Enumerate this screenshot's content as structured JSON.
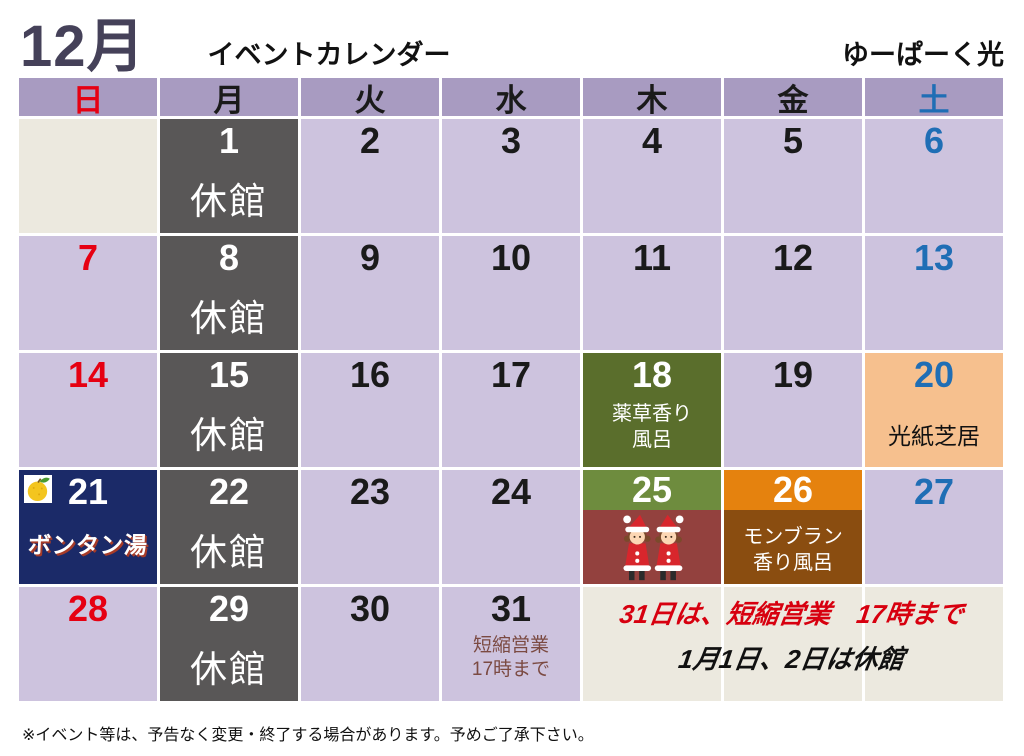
{
  "header": {
    "month": "12月",
    "title": "イベントカレンダー",
    "facility": "ゆーぱーく光"
  },
  "weekdays": [
    {
      "id": "sun",
      "label": "日",
      "color": "red"
    },
    {
      "id": "mon",
      "label": "月",
      "color": "black"
    },
    {
      "id": "tue",
      "label": "火",
      "color": "black"
    },
    {
      "id": "wed",
      "label": "水",
      "color": "black"
    },
    {
      "id": "thu",
      "label": "木",
      "color": "black"
    },
    {
      "id": "fri",
      "label": "金",
      "color": "black"
    },
    {
      "id": "sat",
      "label": "土",
      "color": "blue"
    }
  ],
  "calendar": {
    "cells": [
      {
        "bg": "cream"
      },
      {
        "day": "1",
        "day_color": "white",
        "bg": "gray",
        "label": "休館",
        "label_class": "closed"
      },
      {
        "day": "2",
        "day_color": "black",
        "bg": "lavender"
      },
      {
        "day": "3",
        "day_color": "black",
        "bg": "lavender"
      },
      {
        "day": "4",
        "day_color": "black",
        "bg": "lavender"
      },
      {
        "day": "5",
        "day_color": "black",
        "bg": "lavender"
      },
      {
        "day": "6",
        "day_color": "blue",
        "bg": "lavender"
      },
      {
        "day": "7",
        "day_color": "red",
        "bg": "lavender"
      },
      {
        "day": "8",
        "day_color": "white",
        "bg": "gray",
        "label": "休館",
        "label_class": "closed"
      },
      {
        "day": "9",
        "day_color": "black",
        "bg": "lavender"
      },
      {
        "day": "10",
        "day_color": "black",
        "bg": "lavender"
      },
      {
        "day": "11",
        "day_color": "black",
        "bg": "lavender"
      },
      {
        "day": "12",
        "day_color": "black",
        "bg": "lavender"
      },
      {
        "day": "13",
        "day_color": "blue",
        "bg": "lavender"
      },
      {
        "day": "14",
        "day_color": "red",
        "bg": "lavender"
      },
      {
        "day": "15",
        "day_color": "white",
        "bg": "gray",
        "label": "休館",
        "label_class": "closed"
      },
      {
        "day": "16",
        "day_color": "black",
        "bg": "lavender"
      },
      {
        "day": "17",
        "day_color": "black",
        "bg": "lavender"
      },
      {
        "day": "18",
        "day_color": "white",
        "bg": "olive",
        "label": "薬草香り\n風呂",
        "label_class": "event-white"
      },
      {
        "day": "19",
        "day_color": "black",
        "bg": "lavender"
      },
      {
        "day": "20",
        "day_color": "blue",
        "bg": "peach",
        "label": "光紙芝居",
        "label_class": "event-black"
      },
      {
        "day": "21",
        "day_color": "white",
        "bg": "navy",
        "fruit": true,
        "label": "ボンタン湯",
        "label_class": "bontan"
      },
      {
        "day": "22",
        "day_color": "white",
        "bg": "gray",
        "label": "休館",
        "label_class": "closed"
      },
      {
        "day": "23",
        "day_color": "black",
        "bg": "lavender"
      },
      {
        "day": "24",
        "day_color": "black",
        "bg": "lavender"
      },
      {
        "day": "25",
        "day_color": "white",
        "band": "green",
        "body": "maroon",
        "santa": true
      },
      {
        "day": "26",
        "day_color": "white",
        "band": "orange",
        "body": "brown",
        "label": "モンブラン\n香り風呂",
        "label_class": "event-white"
      },
      {
        "day": "27",
        "day_color": "blue",
        "bg": "lavender"
      },
      {
        "day": "28",
        "day_color": "red",
        "bg": "lavender"
      },
      {
        "day": "29",
        "day_color": "white",
        "bg": "gray",
        "label": "休館",
        "label_class": "closed"
      },
      {
        "day": "30",
        "day_color": "black",
        "bg": "lavender"
      },
      {
        "day": "31",
        "day_color": "black",
        "bg": "lavender",
        "label": "短縮営業\n17時まで",
        "label_class": "shortened"
      },
      {
        "bg": "cream"
      },
      {
        "bg": "cream"
      },
      {
        "bg": "cream"
      }
    ]
  },
  "note": {
    "line1": "31日は、短縮営業　17時まで",
    "line2": "1月1日、2日は休館"
  },
  "footer": {
    "disclaimer": "※イベント等は、予告なく変更・終了する場合があります。予めご了承下さい。"
  },
  "icons": {
    "fruit": "bontan-fruit-icon",
    "santa": "santa-children-illustration"
  },
  "colors": {
    "lavender": "#cdc3de",
    "header_lavender": "#a89bc1",
    "cream": "#ece9df",
    "closed_gray": "#595757",
    "olive_green": "#5a6e2c",
    "band_green": "#6e8c3e",
    "maroon": "#93413e",
    "band_orange": "#e5820e",
    "brown": "#8a4d10",
    "peach": "#f6c08e",
    "navy": "#1b2a68",
    "sunday_red": "#e60012",
    "saturday_blue": "#1f6eb5",
    "note_red": "#d7000f",
    "title_purple": "#454159",
    "shortened_brown": "#7b4a42"
  }
}
